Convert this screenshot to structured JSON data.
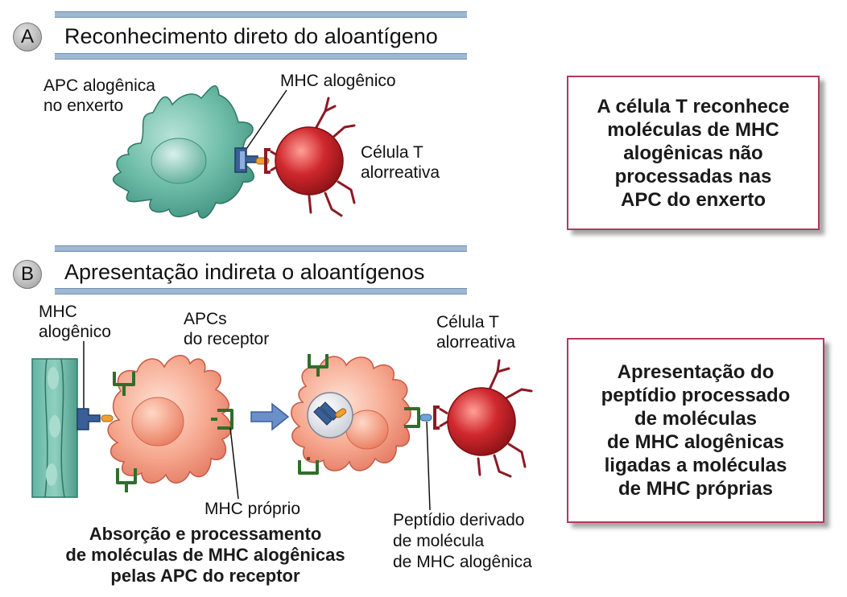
{
  "panel_a": {
    "badge": "A",
    "title": "Reconhecimento direto do aloantígeno",
    "label_apc": [
      "APC alogênica",
      "no enxerto"
    ],
    "label_mhc": "MHC alogênico",
    "label_tcell": [
      "Célula T",
      "alorreativa"
    ],
    "box_lines": [
      "A célula T reconhece",
      "moléculas de MHC",
      "alogênicas não",
      "processadas nas",
      "APC do enxerto"
    ]
  },
  "panel_b": {
    "badge": "B",
    "title": "Apresentação indireta o aloantígenos",
    "label_mhc": [
      "MHC",
      "alogênico"
    ],
    "label_apcs": [
      "APCs",
      "do receptor"
    ],
    "label_tcell": [
      "Célula T",
      "alorreativa"
    ],
    "label_mhc_proprio": "MHC próprio",
    "caption": [
      "Absorção e processamento",
      "de moléculas de MHC alogênicas",
      "pelas APC do receptor"
    ],
    "label_peptide": [
      "Peptídio derivado",
      "de molécula",
      "de MHC alogênica"
    ],
    "box_lines": [
      "Apresentação do",
      "peptídio processado",
      "de moléculas",
      "de MHC alogênicas",
      "ligadas a moléculas",
      "de MHC próprias"
    ]
  },
  "colors": {
    "band": "#9fb8d2",
    "apc_graft": "#5fb3a0",
    "apc_recipient": "#f4a08a",
    "tcell": "#c0262d",
    "mhc_allo": "#3a5f96",
    "mhc_self": "#3f8a3a",
    "peptide": "#f0a030",
    "box_border": "#b03a5b",
    "arrow": "#6a8fc9"
  }
}
